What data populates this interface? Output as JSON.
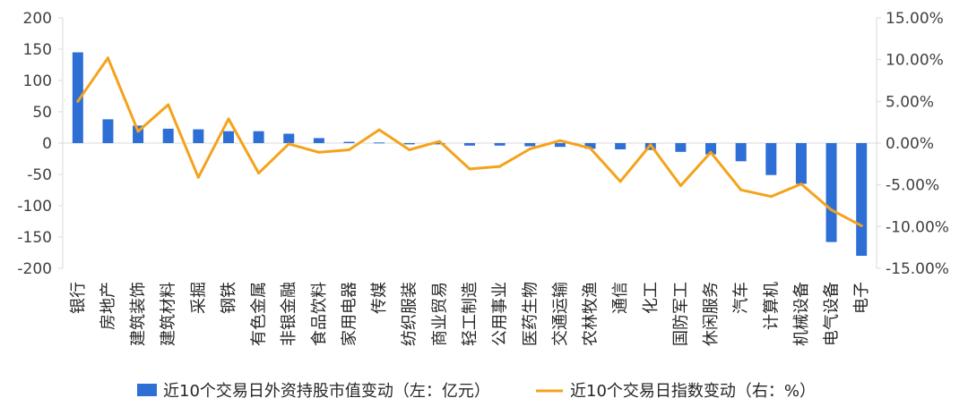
{
  "chart_data": {
    "type": "bar+line",
    "categories": [
      "银行",
      "房地产",
      "建筑装饰",
      "建筑材料",
      "采掘",
      "钢铁",
      "有色金属",
      "非银金融",
      "食品饮料",
      "家用电器",
      "传媒",
      "纺织服装",
      "商业贸易",
      "轻工制造",
      "公用事业",
      "医药生物",
      "交通运输",
      "农林牧渔",
      "通信",
      "化工",
      "国防军工",
      "休闲服务",
      "汽车",
      "计算机",
      "机械设备",
      "电气设备",
      "电子"
    ],
    "series": [
      {
        "name": "近10个交易日外资持股市值变动（左：亿元）",
        "kind": "bar",
        "axis": "left",
        "values": [
          145,
          38,
          28,
          23,
          22,
          19,
          19,
          15,
          8,
          2,
          1,
          -2,
          -2,
          -4,
          -4,
          -5,
          -6,
          -9,
          -10,
          -11,
          -14,
          -18,
          -29,
          -51,
          -65,
          -158,
          -180
        ]
      },
      {
        "name": "近10个交易日指数变动（右：%）",
        "kind": "line",
        "axis": "right",
        "values": [
          5.0,
          10.2,
          1.4,
          4.6,
          -4.1,
          2.9,
          -3.6,
          -0.1,
          -1.1,
          -0.8,
          1.6,
          -0.8,
          0.2,
          -3.1,
          -2.8,
          -0.7,
          0.3,
          -0.6,
          -4.6,
          -0.2,
          -5.1,
          -1.1,
          -5.6,
          -6.4,
          -4.9,
          -8.0,
          -9.9
        ]
      }
    ],
    "left_axis": {
      "min": -200,
      "max": 200,
      "ticks": [
        "200",
        "150",
        "100",
        "50",
        "0",
        "-50",
        "-100",
        "-150",
        "-200"
      ]
    },
    "right_axis": {
      "min": -15,
      "max": 15,
      "ticks": [
        "15.00%",
        "10.00%",
        "5.00%",
        "0.00%",
        "-5.00%",
        "-10.00%",
        "-15.00%"
      ]
    },
    "grid": false,
    "legend_position": "bottom",
    "colors": {
      "bar": "#2e6fd6",
      "line": "#f5a21b",
      "axis": "#d9d9d9"
    }
  }
}
